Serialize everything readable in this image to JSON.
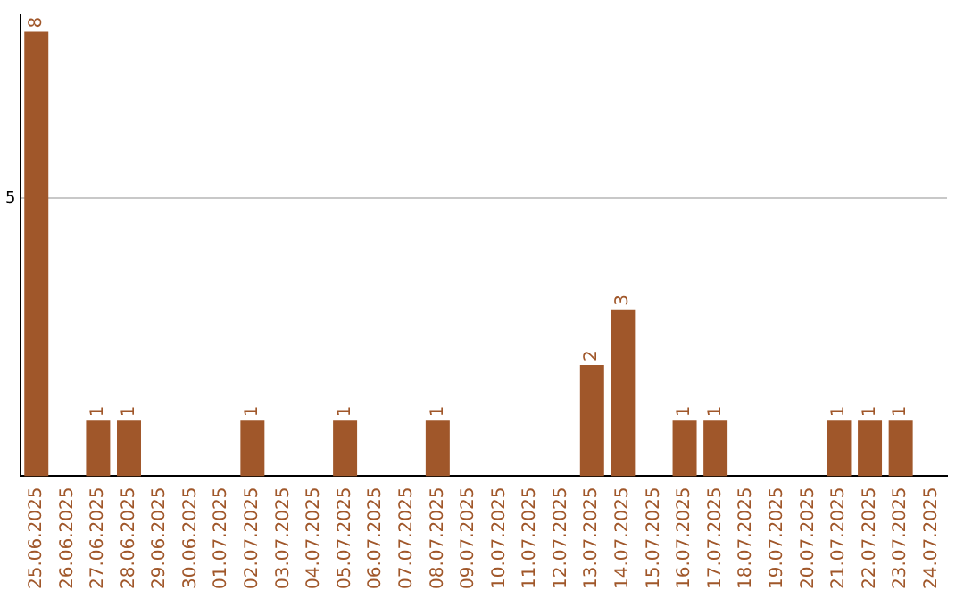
{
  "chart_data": {
    "type": "bar",
    "categories": [
      "25.06.2025",
      "26.06.2025",
      "27.06.2025",
      "28.06.2025",
      "29.06.2025",
      "30.06.2025",
      "01.07.2025",
      "02.07.2025",
      "03.07.2025",
      "04.07.2025",
      "05.07.2025",
      "06.07.2025",
      "07.07.2025",
      "08.07.2025",
      "09.07.2025",
      "10.07.2025",
      "11.07.2025",
      "12.07.2025",
      "13.07.2025",
      "14.07.2025",
      "15.07.2025",
      "16.07.2025",
      "17.07.2025",
      "18.07.2025",
      "19.07.2025",
      "20.07.2025",
      "21.07.2025",
      "22.07.2025",
      "23.07.2025",
      "24.07.2025"
    ],
    "values": [
      8,
      0,
      1,
      1,
      0,
      0,
      0,
      1,
      0,
      0,
      1,
      0,
      0,
      1,
      0,
      0,
      0,
      0,
      2,
      3,
      0,
      1,
      1,
      0,
      0,
      0,
      1,
      1,
      1,
      0
    ],
    "value_labels": [
      "8",
      null,
      "1",
      "1",
      null,
      null,
      null,
      "1",
      null,
      null,
      "1",
      null,
      null,
      "1",
      null,
      null,
      null,
      null,
      "2",
      "3",
      null,
      "1",
      "1",
      null,
      null,
      null,
      "1",
      "1",
      "1",
      null
    ],
    "color": "#a0572a",
    "ylim": [
      0,
      8.3
    ],
    "yticks": [
      5
    ],
    "grid": "y",
    "legend": false
  }
}
